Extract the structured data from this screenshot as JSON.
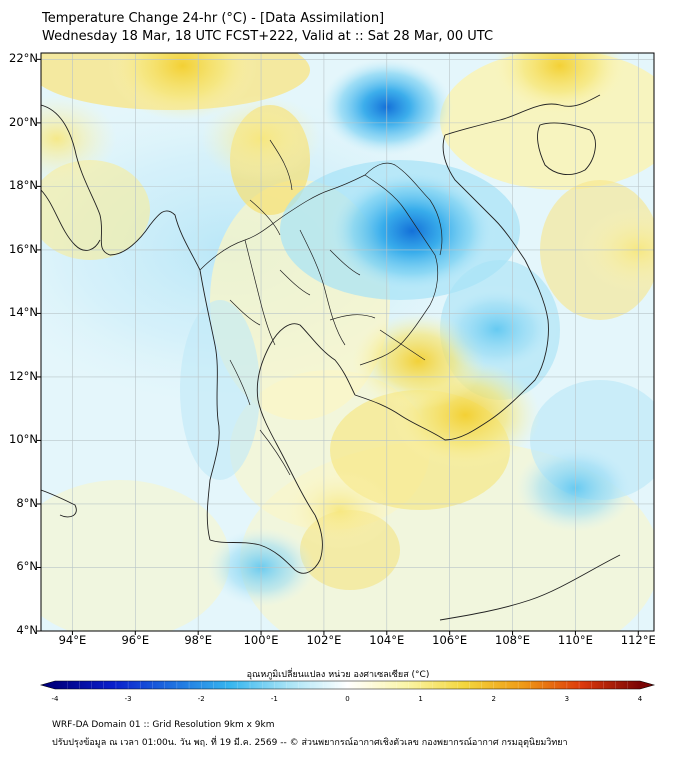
{
  "header": {
    "title_line1": "Temperature Change 24-hr (°C) - [Data Assimilation]",
    "title_line2": "Wednesday 18 Mar, 18 UTC FCST+222, Valid at :: Sat 28 Mar, 00 UTC"
  },
  "map": {
    "lat_labels": [
      "22°N",
      "20°N",
      "18°N",
      "16°N",
      "14°N",
      "12°N",
      "10°N",
      "8°N",
      "6°N",
      "4°N"
    ],
    "lon_labels": [
      "94°E",
      "96°E",
      "98°E",
      "100°E",
      "102°E",
      "104°E",
      "106°E",
      "108°E",
      "110°E",
      "112°E"
    ],
    "lat_range": [
      4,
      22.2
    ],
    "lon_range": [
      93,
      112.5
    ],
    "field_variable": "24-hr temperature change",
    "warm_anomalies": [
      {
        "lon": 97.5,
        "lat": 21.8,
        "value": 1.5
      },
      {
        "lon": 106.5,
        "lat": 10.8,
        "value": 1.5
      },
      {
        "lon": 105.0,
        "lat": 12.5,
        "value": 1.2
      },
      {
        "lon": 100.0,
        "lat": 19.5,
        "value": 1.0
      },
      {
        "lon": 109.5,
        "lat": 21.8,
        "value": 1.2
      },
      {
        "lon": 93.5,
        "lat": 19.5,
        "value": 1.0
      },
      {
        "lon": 112.0,
        "lat": 16.0,
        "value": 1.0
      },
      {
        "lon": 102.5,
        "lat": 7.8,
        "value": 0.8
      }
    ],
    "cold_anomalies": [
      {
        "lon": 104.8,
        "lat": 16.6,
        "value": -1.8
      },
      {
        "lon": 104.0,
        "lat": 20.5,
        "value": -1.2
      },
      {
        "lon": 107.5,
        "lat": 13.5,
        "value": -1.0
      },
      {
        "lon": 110.0,
        "lat": 8.5,
        "value": -1.0
      },
      {
        "lon": 100.0,
        "lat": 6.0,
        "value": -0.8
      }
    ]
  },
  "colorbar": {
    "title": "อุณหภูมิเปลี่ยนแปลง หน่วย องศาเซลเซียส (°C)",
    "ticks": [
      "-4",
      "-3",
      "-2",
      "-1",
      "0",
      "1",
      "2",
      "3",
      "4"
    ],
    "min": -4,
    "max": 4,
    "colors": [
      "#000080",
      "#0a1fcc",
      "#1e6fe0",
      "#37b6ef",
      "#a9e4f6",
      "#ffffff",
      "#fbf5a8",
      "#f3d63d",
      "#ef9a16",
      "#dd3a0c",
      "#7a0505"
    ]
  },
  "footer": {
    "line1": "WRF-DA Domain 01 :: Grid Resolution 9km x 9km",
    "line2": "ปรับปรุงข้อมูล ณ เวลา 01:00น. วัน พฤ. ที่ 19 มี.ค. 2569 -- © ส่วนพยากรณ์อากาศเชิงตัวเลข กองพยากรณ์อากาศ กรมอุตุนิยมวิทยา"
  }
}
